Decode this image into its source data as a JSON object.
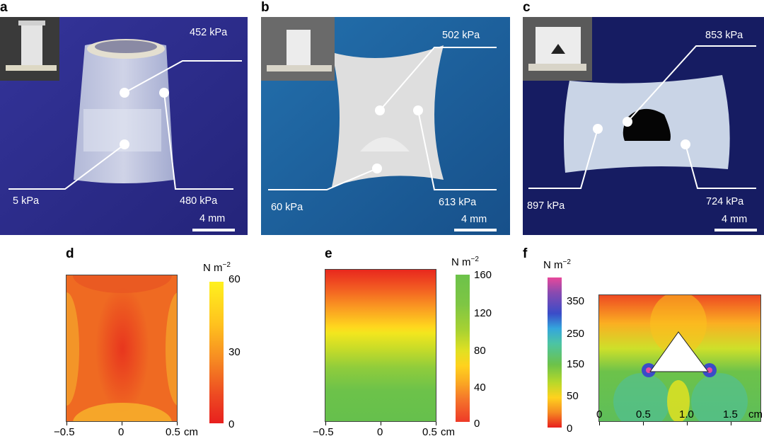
{
  "panels": {
    "a": {
      "letter": "a",
      "labels": [
        "452 kPa",
        "480 kPa",
        "5 kPa"
      ],
      "scale": "4 mm"
    },
    "b": {
      "letter": "b",
      "labels": [
        "502 kPa",
        "613 kPa",
        "60 kPa"
      ],
      "scale": "4 mm"
    },
    "c": {
      "letter": "c",
      "labels": [
        "853 kPa",
        "897 kPa",
        "724 kPa"
      ],
      "scale": "4 mm"
    },
    "d": {
      "letter": "d",
      "unit": "N m",
      "unit_exp": "−2",
      "colorbar_ticks": [
        "60",
        "30",
        "0"
      ],
      "x_ticks": [
        "−0.5",
        "0",
        "0.5"
      ],
      "x_unit": "cm"
    },
    "e": {
      "letter": "e",
      "unit": "N m",
      "unit_exp": "−2",
      "colorbar_ticks": [
        "160",
        "120",
        "80",
        "40",
        "0"
      ],
      "x_ticks": [
        "−0.5",
        "0",
        "0.5"
      ],
      "x_unit": "cm"
    },
    "f": {
      "letter": "f",
      "unit": "N m",
      "unit_exp": "−2",
      "colorbar_ticks": [
        "350",
        "250",
        "150",
        "50",
        "0"
      ],
      "x_ticks": [
        "0",
        "0.5",
        "1.0",
        "1.5"
      ],
      "x_unit": "cm"
    }
  },
  "colors": {
    "photo_a_bg": "#2c2c8c",
    "photo_b_bg": "#1d5e9b",
    "photo_c_bg": "#141a5e",
    "heat_low": "#e8281e",
    "heat_mid": "#ffd21e",
    "heat_green": "#6cc24a"
  }
}
